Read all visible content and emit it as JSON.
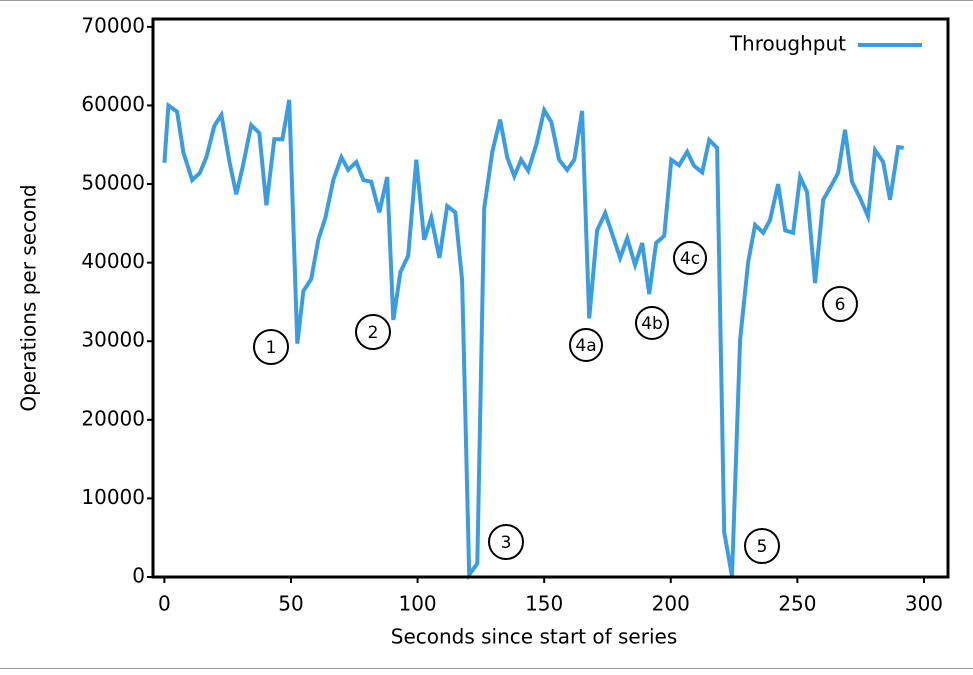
{
  "chart_data": {
    "type": "line",
    "xlabel": "Seconds since start of series",
    "ylabel": "Operations per second",
    "xlim": [
      -4.5,
      309.5
    ],
    "ylim": [
      0,
      71000
    ],
    "xticks": [
      0,
      50,
      100,
      150,
      200,
      250,
      300
    ],
    "yticks": [
      0,
      10000,
      20000,
      30000,
      40000,
      50000,
      60000,
      70000
    ],
    "legend": "upper right",
    "series": [
      {
        "name": "Throughput",
        "color": "#3a9de2",
        "x": [
          0,
          1.6,
          5,
          7.5,
          11,
          14,
          16.6,
          19.7,
          22.5,
          25.7,
          28.4,
          31,
          34.3,
          37.5,
          40.3,
          43.4,
          46.6,
          49.3,
          52.5,
          54.9,
          58,
          60.8,
          63.6,
          66.7,
          69.9,
          72.6,
          75.8,
          78.6,
          81.7,
          84.9,
          88,
          90.4,
          93.2,
          96.3,
          99.5,
          102.6,
          105.4,
          108.6,
          111.7,
          114.9,
          117.6,
          120.4,
          123.6,
          126.3,
          129.5,
          132.6,
          135.4,
          138.2,
          140.9,
          143.7,
          146.9,
          150,
          152.8,
          155.9,
          159.1,
          161.9,
          165,
          167.8,
          170.9,
          174.1,
          176.9,
          180,
          182.8,
          185.9,
          188.7,
          191.5,
          194.2,
          197.4,
          200.2,
          203.3,
          206.5,
          209.2,
          212.4,
          215.2,
          218.3,
          221.1,
          224.2,
          227.4,
          230.6,
          233.3,
          236.5,
          239.2,
          242.4,
          245.2,
          248.3,
          251.1,
          253.8,
          257,
          260.2,
          262.9,
          266.1,
          268.8,
          271.6,
          274.8,
          277.9,
          280.7,
          283.9,
          286.6,
          289.8,
          292
        ],
        "values": [
          52700,
          60000,
          59200,
          54000,
          50500,
          51400,
          53400,
          57400,
          58800,
          52800,
          48700,
          52300,
          57500,
          56500,
          47300,
          55700,
          55700,
          60700,
          29700,
          36400,
          37900,
          42900,
          45700,
          50500,
          53400,
          51800,
          52800,
          50500,
          50300,
          46400,
          50900,
          32700,
          38800,
          40900,
          53100,
          42900,
          45700,
          40600,
          47200,
          46400,
          37800,
          300,
          1700,
          46900,
          54100,
          58200,
          53400,
          51000,
          53100,
          51700,
          55000,
          59400,
          57900,
          53100,
          51800,
          53100,
          59300,
          32900,
          44100,
          46300,
          43600,
          40600,
          43100,
          39700,
          42500,
          36000,
          42500,
          43400,
          53100,
          52400,
          54100,
          52300,
          51500,
          55600,
          54600,
          5700,
          100,
          30200,
          40100,
          44800,
          43800,
          45400,
          50000,
          44100,
          43800,
          50900,
          49000,
          37400,
          48000,
          49500,
          51400,
          56900,
          50300,
          48200,
          45900,
          54300,
          52800,
          48000,
          54700,
          54600
        ]
      }
    ],
    "annotations": [
      "1",
      "2",
      "3",
      "4a",
      "4b",
      "4c",
      "5",
      "6"
    ]
  }
}
